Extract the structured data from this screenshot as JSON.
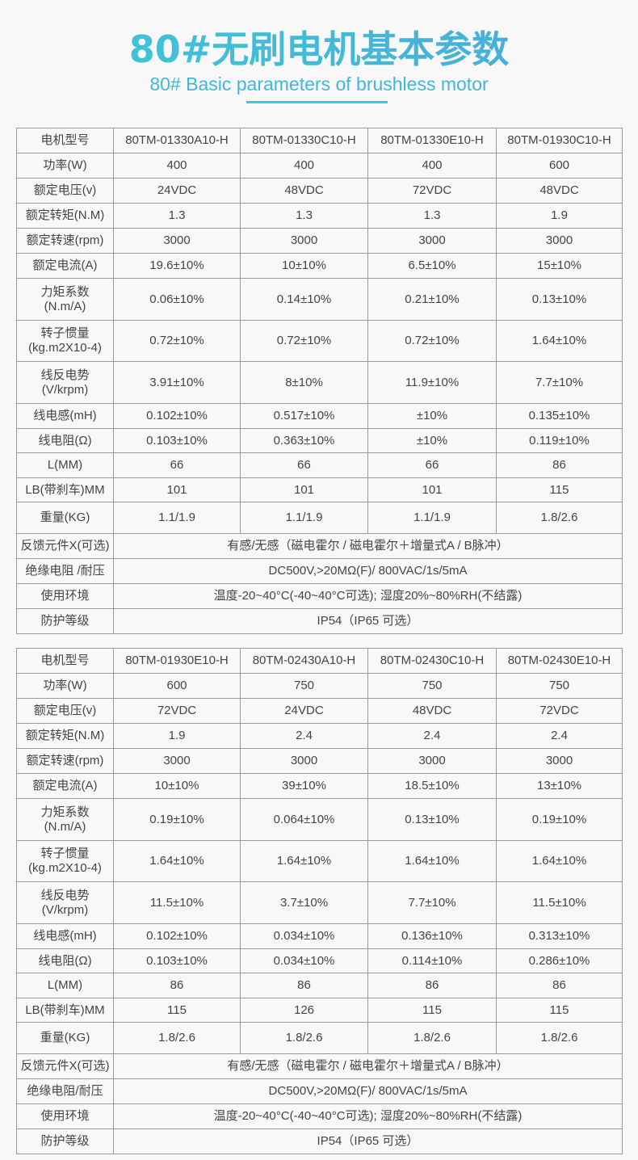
{
  "header": {
    "title": "80#无刷电机基本参数",
    "subtitle": "80# Basic parameters of brushless motor",
    "accent": "#3ec9d6"
  },
  "tables": [
    {
      "rows": [
        {
          "label": "电机型号",
          "values": [
            "80TM-01330A10-H",
            "80TM-01330C10-H",
            "80TM-01330E10-H",
            "80TM-01930C10-H"
          ]
        },
        {
          "label": "功率(W)",
          "values": [
            "400",
            "400",
            "400",
            "600"
          ]
        },
        {
          "label": "额定电压(v)",
          "values": [
            "24VDC",
            "48VDC",
            "72VDC",
            "48VDC"
          ]
        },
        {
          "label": "额定转矩(N.M)",
          "values": [
            "1.3",
            "1.3",
            "1.3",
            "1.9"
          ]
        },
        {
          "label": "额定转速(rpm)",
          "values": [
            "3000",
            "3000",
            "3000",
            "3000"
          ]
        },
        {
          "label": "额定电流(A)",
          "values": [
            "19.6±10%",
            "10±10%",
            "6.5±10%",
            "15±10%"
          ]
        },
        {
          "label": "力矩系数\n(N.m/A)",
          "values": [
            "0.06±10%",
            "0.14±10%",
            "0.21±10%",
            "0.13±10%"
          ]
        },
        {
          "label": "转子惯量\n(kg.m2X10-4)",
          "values": [
            "0.72±10%",
            "0.72±10%",
            "0.72±10%",
            "1.64±10%"
          ]
        },
        {
          "label": "线反电势\n(V/krpm)",
          "values": [
            "3.91±10%",
            "8±10%",
            "11.9±10%",
            "7.7±10%"
          ]
        },
        {
          "label": "线电感(mH)",
          "values": [
            "0.102±10%",
            "0.517±10%",
            "±10%",
            "0.135±10%"
          ]
        },
        {
          "label": "线电阻(Ω)",
          "values": [
            "0.103±10%",
            "0.363±10%",
            "±10%",
            "0.119±10%"
          ]
        },
        {
          "label": "L(MM)",
          "values": [
            "66",
            "66",
            "66",
            "86"
          ]
        },
        {
          "label": "LB(带刹车)MM",
          "values": [
            "101",
            "101",
            "101",
            "115"
          ]
        },
        {
          "label": "重量(KG)",
          "values": [
            "1.1/1.9",
            "1.1/1.9",
            "1.1/1.9",
            "1.8/2.6"
          ]
        },
        {
          "label": "反馈元件X(可选)",
          "values": [
            "有感/无感（磁电霍尔 / 磁电霍尔＋增量式A / B脉冲）"
          ]
        },
        {
          "label": "绝缘电阻 /耐压",
          "values": [
            "DC500V,>20MΩ(F)/ 800VAC/1s/5mA"
          ]
        },
        {
          "label": "使用环境",
          "values": [
            "温度-20~40°C(-40~40°C可选); 湿度20%~80%RH(不结露)"
          ]
        },
        {
          "label": "防护等级",
          "values": [
            "IP54（IP65 可选）"
          ]
        }
      ]
    },
    {
      "rows": [
        {
          "label": "电机型号",
          "values": [
            "80TM-01930E10-H",
            "80TM-02430A10-H",
            "80TM-02430C10-H",
            "80TM-02430E10-H"
          ]
        },
        {
          "label": "功率(W)",
          "values": [
            "600",
            "750",
            "750",
            "750"
          ]
        },
        {
          "label": "额定电压(v)",
          "values": [
            "72VDC",
            "24VDC",
            "48VDC",
            "72VDC"
          ]
        },
        {
          "label": "额定转矩(N.M)",
          "values": [
            "1.9",
            "2.4",
            "2.4",
            "2.4"
          ]
        },
        {
          "label": "额定转速(rpm)",
          "values": [
            "3000",
            "3000",
            "3000",
            "3000"
          ]
        },
        {
          "label": "额定电流(A)",
          "values": [
            "10±10%",
            "39±10%",
            "18.5±10%",
            "13±10%"
          ]
        },
        {
          "label": "力矩系数\n(N.m/A)",
          "values": [
            "0.19±10%",
            "0.064±10%",
            "0.13±10%",
            "0.19±10%"
          ]
        },
        {
          "label": "转子惯量\n(kg.m2X10-4)",
          "values": [
            "1.64±10%",
            "1.64±10%",
            "1.64±10%",
            "1.64±10%"
          ]
        },
        {
          "label": "线反电势\n(V/krpm)",
          "values": [
            "11.5±10%",
            "3.7±10%",
            "7.7±10%",
            "11.5±10%"
          ]
        },
        {
          "label": "线电感(mH)",
          "values": [
            "0.102±10%",
            "0.034±10%",
            "0.136±10%",
            "0.313±10%"
          ]
        },
        {
          "label": "线电阻(Ω)",
          "values": [
            "0.103±10%",
            "0.034±10%",
            "0.114±10%",
            "0.286±10%"
          ]
        },
        {
          "label": "L(MM)",
          "values": [
            "86",
            "86",
            "86",
            "86"
          ]
        },
        {
          "label": "LB(带刹车)MM",
          "values": [
            "115",
            "126",
            "115",
            "115"
          ]
        },
        {
          "label": "重量(KG)",
          "values": [
            "1.8/2.6",
            "1.8/2.6",
            "1.8/2.6",
            "1.8/2.6"
          ]
        },
        {
          "label": "反馈元件X(可选)",
          "values": [
            "有感/无感（磁电霍尔 / 磁电霍尔＋增量式A / B脉冲）"
          ]
        },
        {
          "label": "绝缘电阻/耐压",
          "values": [
            "DC500V,>20MΩ(F)/ 800VAC/1s/5mA"
          ]
        },
        {
          "label": "使用环境",
          "values": [
            "温度-20~40°C(-40~40°C可选); 湿度20%~80%RH(不结露)"
          ]
        },
        {
          "label": "防护等级",
          "values": [
            "IP54（IP65 可选）"
          ]
        }
      ]
    }
  ]
}
